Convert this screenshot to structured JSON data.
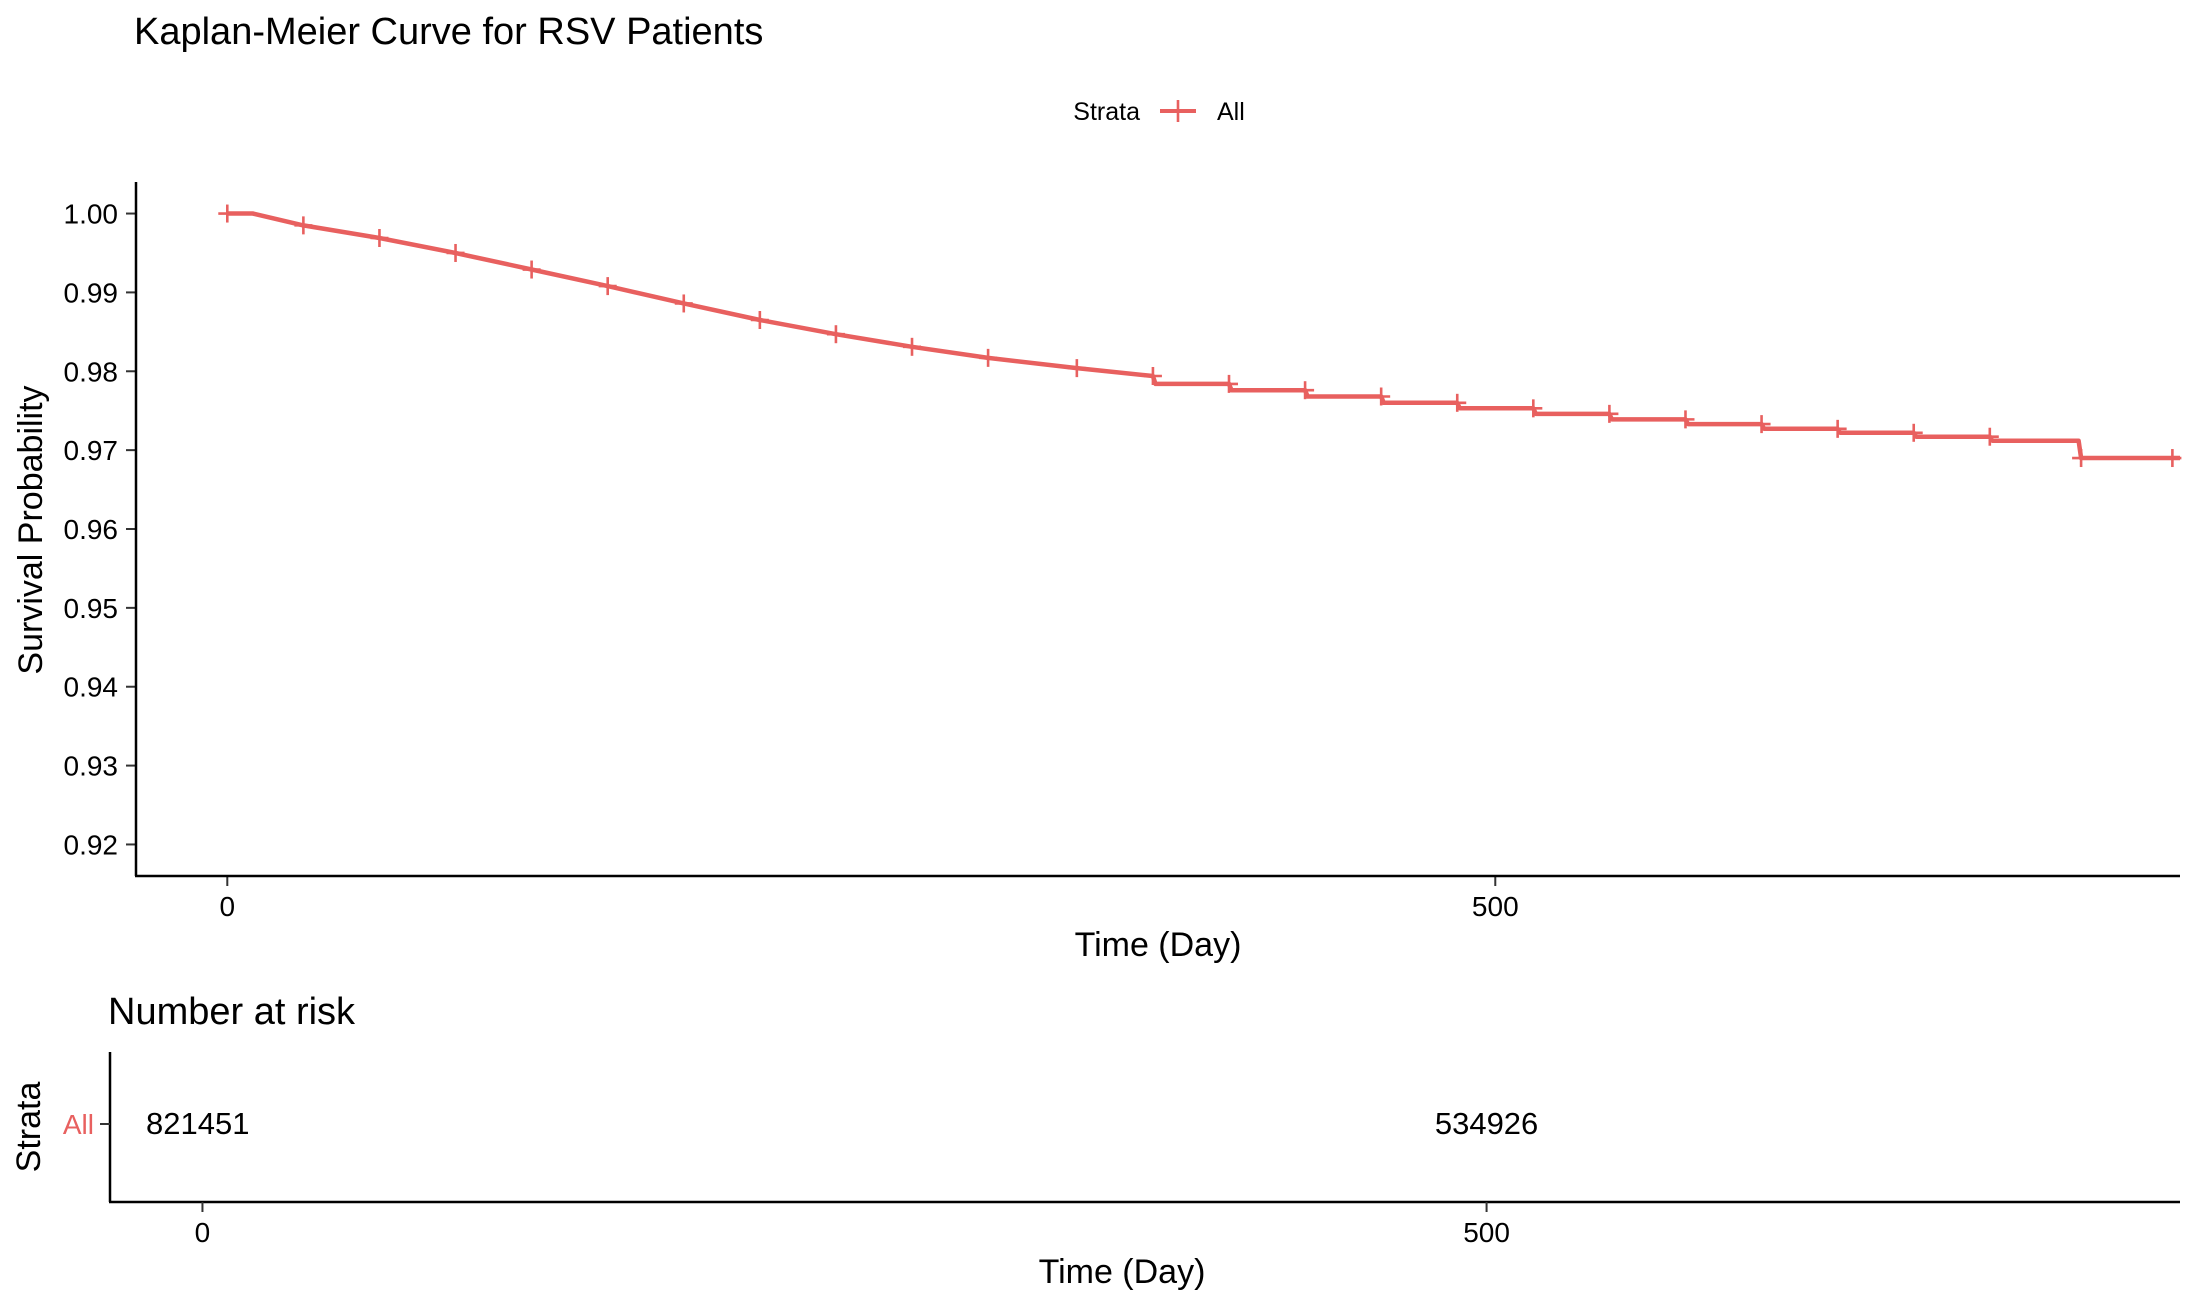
{
  "chart_data": [
    {
      "type": "line",
      "subtype": "kaplan-meier-step",
      "title": "Kaplan-Meier Curve for RSV Patients",
      "xlabel": "Time (Day)",
      "ylabel": "Survival Probability",
      "xlim": [
        -36,
        770
      ],
      "ylim": [
        0.916,
        1.004
      ],
      "x_ticks": [
        0,
        500
      ],
      "x_tick_labels": [
        "0",
        "500"
      ],
      "y_ticks": [
        0.92,
        0.93,
        0.94,
        0.95,
        0.96,
        0.97,
        0.98,
        0.99,
        1.0
      ],
      "y_tick_labels": [
        "0.92",
        "0.93",
        "0.94",
        "0.95",
        "0.96",
        "0.97",
        "0.98",
        "0.99",
        "1.00"
      ],
      "grid": false,
      "legend": {
        "title": "Strata",
        "position": "top",
        "entries": [
          "All"
        ]
      },
      "series": [
        {
          "name": "All",
          "color": "#E8605F",
          "x": [
            0,
            10,
            30,
            60,
            90,
            120,
            150,
            180,
            210,
            240,
            270,
            300,
            335,
            365,
            366,
            395,
            396,
            425,
            426,
            455,
            456,
            485,
            486,
            515,
            516,
            545,
            546,
            575,
            576,
            605,
            606,
            635,
            636,
            665,
            666,
            695,
            696,
            730,
            731,
            770
          ],
          "y": [
            1.0,
            1.0,
            0.9985,
            0.9969,
            0.995,
            0.9929,
            0.9908,
            0.9886,
            0.9865,
            0.9847,
            0.9831,
            0.9817,
            0.9804,
            0.9794,
            0.9784,
            0.9784,
            0.9776,
            0.9776,
            0.9768,
            0.9768,
            0.976,
            0.976,
            0.9753,
            0.9753,
            0.9746,
            0.9746,
            0.9739,
            0.9739,
            0.9733,
            0.9733,
            0.9727,
            0.9727,
            0.9722,
            0.9722,
            0.9717,
            0.9717,
            0.9712,
            0.9712,
            0.969,
            0.969
          ],
          "censor_x": [
            0,
            30,
            60,
            90,
            120,
            150,
            180,
            210,
            240,
            270,
            300,
            335,
            365,
            395,
            425,
            455,
            485,
            515,
            545,
            575,
            605,
            635,
            665,
            695,
            731,
            767
          ],
          "censor_y": [
            1.0,
            0.9985,
            0.9969,
            0.995,
            0.9929,
            0.9908,
            0.9886,
            0.9865,
            0.9847,
            0.9831,
            0.9817,
            0.9804,
            0.9794,
            0.9784,
            0.9776,
            0.9768,
            0.976,
            0.9753,
            0.9746,
            0.9739,
            0.9733,
            0.9727,
            0.9722,
            0.9717,
            0.969,
            0.969
          ]
        }
      ]
    },
    {
      "type": "table",
      "title": "Number at risk",
      "xlabel": "Time (Day)",
      "ylabel": "Strata",
      "xlim": [
        -36,
        770
      ],
      "x_ticks": [
        0,
        500
      ],
      "x_tick_labels": [
        "0",
        "500"
      ],
      "rows": [
        {
          "strata": "All",
          "color": "#E8605F",
          "times": [
            0,
            500
          ],
          "values": [
            "821451",
            "534926"
          ]
        }
      ]
    }
  ]
}
